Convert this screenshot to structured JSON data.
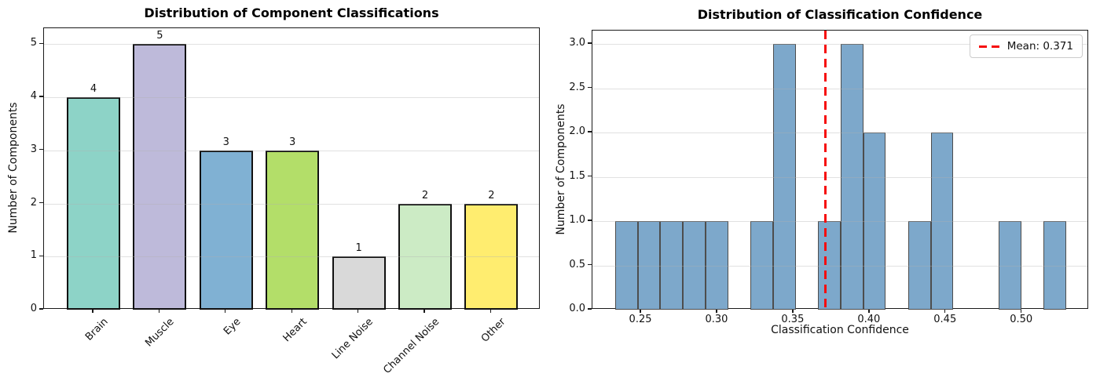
{
  "figure": {
    "background": "#ffffff",
    "grid_color": "rgba(176,176,176,0.38)",
    "spine_color": "#1a1a1a"
  },
  "chart_data": [
    {
      "type": "bar",
      "title": "Distribution of Component Classifications",
      "xlabel": "",
      "ylabel": "Number of Components",
      "categories": [
        "Brain",
        "Muscle",
        "Eye",
        "Heart",
        "Line Noise",
        "Channel Noise",
        "Other"
      ],
      "values": [
        4,
        5,
        3,
        3,
        1,
        2,
        2
      ],
      "value_labels": [
        "4",
        "5",
        "3",
        "3",
        "1",
        "2",
        "2"
      ],
      "bar_colors": [
        "#8dd3c7",
        "#bebada",
        "#80b1d3",
        "#b3de69",
        "#d9d9d9",
        "#ccebc5",
        "#ffed6f"
      ],
      "bar_edge_color": "#111111",
      "yticks": [
        "0",
        "1",
        "2",
        "3",
        "4",
        "5"
      ],
      "ytick_values": [
        0,
        1,
        2,
        3,
        4,
        5
      ],
      "ylim": [
        0,
        5.3
      ],
      "xtick_rotation_deg": 45,
      "grid": "horizontal-only, light, drawn over bars",
      "legend_position": "none"
    },
    {
      "type": "histogram",
      "title": "Distribution of Classification Confidence",
      "xlabel": "Classification Confidence",
      "ylabel": "Number of Components",
      "bin_start": 0.233,
      "bin_width": 0.0148,
      "bin_edges": [
        0.233,
        0.248,
        0.262,
        0.277,
        0.292,
        0.307,
        0.322,
        0.336,
        0.351,
        0.366,
        0.381,
        0.396,
        0.41,
        0.425,
        0.44,
        0.455,
        0.47,
        0.485,
        0.499,
        0.514,
        0.529
      ],
      "counts": [
        1,
        1,
        1,
        1,
        1,
        0,
        1,
        3,
        0,
        1,
        3,
        2,
        0,
        1,
        2,
        0,
        0,
        1,
        0,
        1
      ],
      "total_components": 20,
      "bar_color": "#7da8cb",
      "bar_edge_color": "#4d4d4d",
      "xticks": [
        "0.25",
        "0.30",
        "0.35",
        "0.40",
        "0.45",
        "0.50"
      ],
      "xtick_values": [
        0.25,
        0.3,
        0.35,
        0.4,
        0.45,
        0.5
      ],
      "yticks": [
        "0.0",
        "0.5",
        "1.0",
        "1.5",
        "2.0",
        "2.5",
        "3.0"
      ],
      "ytick_values": [
        0,
        0.5,
        1,
        1.5,
        2,
        2.5,
        3
      ],
      "xlim": [
        0.218,
        0.544
      ],
      "ylim": [
        0,
        3.15
      ],
      "mean": 0.371,
      "mean_line_color": "#f60b0b",
      "mean_line_style": "dashed",
      "grid": "horizontal-only, light, drawn over bars",
      "legend": {
        "label": "Mean: 0.371",
        "position": "upper right"
      }
    }
  ]
}
